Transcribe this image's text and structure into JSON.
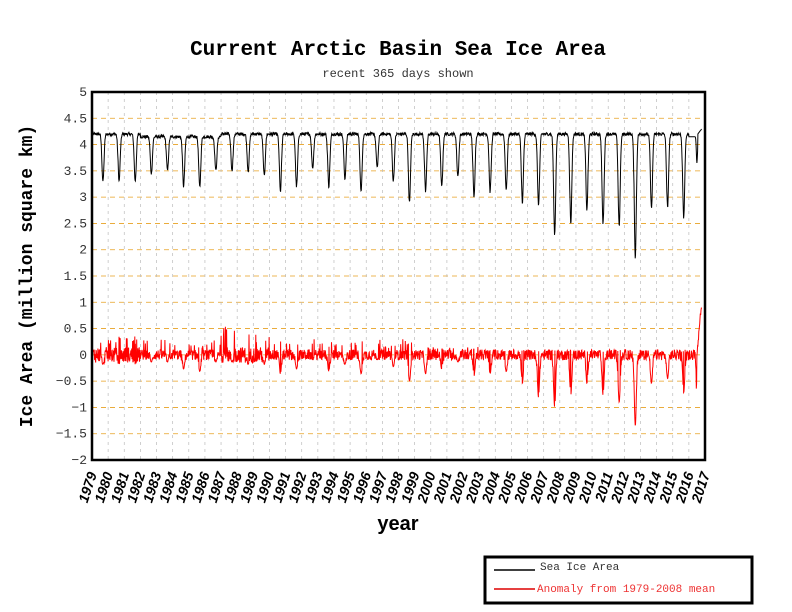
{
  "chart_data": {
    "type": "line",
    "title": "Current Arctic Basin Sea Ice Area",
    "subtitle": "recent 365 days shown",
    "xlabel": "year",
    "ylabel": "Ice Area (million square km)",
    "xlim": [
      1979,
      2017
    ],
    "ylim": [
      -2,
      5
    ],
    "yticks": [
      "-2",
      "-1.5",
      "-1",
      "-0.5",
      "0",
      "0.5",
      "1",
      "1.5",
      "2",
      "2.5",
      "3",
      "3.5",
      "4",
      "4.5",
      "5"
    ],
    "xticks": [
      "1979",
      "1980",
      "1981",
      "1982",
      "1983",
      "1984",
      "1985",
      "1986",
      "1987",
      "1988",
      "1989",
      "1990",
      "1991",
      "1992",
      "1993",
      "1994",
      "1995",
      "1996",
      "1997",
      "1998",
      "1999",
      "2000",
      "2001",
      "2002",
      "2003",
      "2004",
      "2005",
      "2006",
      "2007",
      "2008",
      "2009",
      "2010",
      "2011",
      "2012",
      "2013",
      "2014",
      "2015",
      "2016",
      "2017"
    ],
    "grid": true,
    "legend_position": "bottom-right-outside",
    "series": [
      {
        "name": "Sea Ice Area",
        "color": "#000000",
        "years": [
          1979,
          1980,
          1981,
          1982,
          1983,
          1984,
          1985,
          1986,
          1987,
          1988,
          1989,
          1990,
          1991,
          1992,
          1993,
          1994,
          1995,
          1996,
          1997,
          1998,
          1999,
          2000,
          2001,
          2002,
          2003,
          2004,
          2005,
          2006,
          2007,
          2008,
          2009,
          2010,
          2011,
          2012,
          2013,
          2014,
          2015,
          2016
        ],
        "annual_max": [
          4.2,
          4.2,
          4.2,
          4.15,
          4.15,
          4.15,
          4.15,
          4.15,
          4.2,
          4.2,
          4.2,
          4.2,
          4.2,
          4.2,
          4.2,
          4.2,
          4.2,
          4.2,
          4.2,
          4.2,
          4.2,
          4.2,
          4.2,
          4.2,
          4.2,
          4.2,
          4.2,
          4.2,
          4.2,
          4.2,
          4.2,
          4.2,
          4.2,
          4.2,
          4.2,
          4.2,
          4.2,
          4.3
        ],
        "annual_min": [
          3.3,
          3.3,
          3.3,
          3.45,
          3.5,
          3.2,
          3.2,
          3.5,
          3.5,
          3.5,
          3.4,
          3.1,
          3.2,
          3.55,
          3.2,
          3.35,
          3.1,
          3.55,
          3.3,
          2.9,
          3.1,
          3.2,
          3.4,
          3.0,
          3.1,
          3.15,
          2.9,
          2.85,
          2.3,
          2.5,
          2.75,
          2.5,
          2.45,
          1.85,
          2.8,
          2.8,
          2.6,
          3.9
        ]
      },
      {
        "name": "Anomaly from 1979-2008 mean",
        "color": "#ff0000",
        "years": [
          1979,
          1980,
          1981,
          1982,
          1983,
          1984,
          1985,
          1986,
          1987,
          1988,
          1989,
          1990,
          1991,
          1992,
          1993,
          1994,
          1995,
          1996,
          1997,
          1998,
          1999,
          2000,
          2001,
          2002,
          2003,
          2004,
          2005,
          2006,
          2007,
          2008,
          2009,
          2010,
          2011,
          2012,
          2013,
          2014,
          2015,
          2016
        ],
        "annual_max": [
          0.35,
          0.35,
          0.35,
          0.3,
          0.3,
          0.2,
          0.2,
          0.3,
          0.6,
          0.4,
          0.4,
          0.3,
          0.25,
          0.3,
          0.25,
          0.25,
          0.3,
          0.3,
          0.2,
          0.3,
          0.15,
          0.15,
          0.15,
          0.15,
          0.1,
          0.1,
          0.1,
          0.1,
          0.1,
          0.1,
          0.1,
          0.1,
          0.1,
          0.1,
          0.1,
          0.1,
          0.1,
          0.9
        ],
        "annual_min": [
          -0.2,
          -0.2,
          -0.2,
          -0.15,
          -0.15,
          -0.3,
          -0.35,
          -0.15,
          -0.15,
          -0.2,
          -0.2,
          -0.4,
          -0.3,
          -0.1,
          -0.35,
          -0.2,
          -0.4,
          -0.1,
          -0.25,
          -0.55,
          -0.4,
          -0.3,
          -0.15,
          -0.45,
          -0.4,
          -0.35,
          -0.6,
          -0.9,
          -1.1,
          -0.85,
          -0.6,
          -0.85,
          -1.0,
          -1.5,
          -0.6,
          -0.5,
          -0.8,
          -0.1
        ]
      }
    ]
  }
}
